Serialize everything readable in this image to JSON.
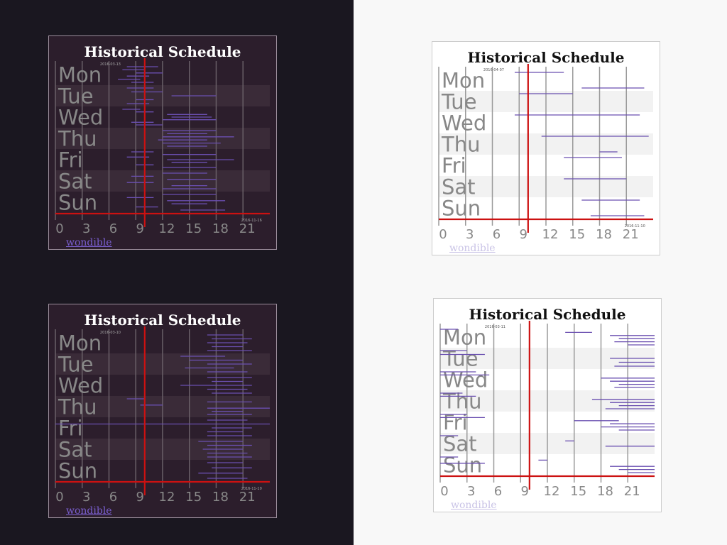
{
  "link_label": "wondible",
  "chart_data": [
    {
      "type": "timeline",
      "theme": "dark",
      "title": "Historical Schedule",
      "start_date": "2016-03-13",
      "end_date": "2016-11-16",
      "y_categories": [
        "Mon",
        "Tue",
        "Wed",
        "Thu",
        "Fri",
        "Sat",
        "Sun"
      ],
      "x_ticks": [
        0,
        3,
        6,
        9,
        12,
        15,
        18,
        21
      ],
      "xlim": [
        0,
        24
      ],
      "current_hour": 10,
      "segment_color": "#6a4fb0",
      "day_segments": [
        [
          [
            8,
            11.5
          ],
          [
            7.5,
            10
          ],
          [
            9,
            12
          ],
          [
            8,
            10.5
          ],
          [
            7,
            9.5
          ],
          [
            8.5,
            11
          ]
        ],
        [
          [
            8,
            11
          ],
          [
            8.5,
            12
          ],
          [
            13,
            18
          ],
          [
            9,
            11
          ],
          [
            8,
            10.5
          ]
        ],
        [
          [
            7.5,
            9.5
          ],
          [
            9,
            11
          ],
          [
            12.5,
            17
          ],
          [
            13,
            17.5
          ],
          [
            12,
            18
          ],
          [
            8.5,
            11
          ],
          [
            9,
            12
          ]
        ],
        [
          [
            12,
            18
          ],
          [
            12.5,
            17
          ],
          [
            12,
            20
          ],
          [
            11.5,
            17
          ],
          [
            12,
            18.5
          ],
          [
            12.5,
            17
          ]
        ],
        [
          [
            8.5,
            11
          ],
          [
            12,
            18
          ],
          [
            8,
            10.5
          ],
          [
            12.5,
            20
          ],
          [
            13,
            17
          ],
          [
            9,
            11
          ],
          [
            12,
            18
          ]
        ],
        [
          [
            12,
            17
          ],
          [
            8.5,
            11
          ],
          [
            12.5,
            18
          ],
          [
            8,
            11
          ],
          [
            13,
            17
          ],
          [
            12,
            18
          ]
        ],
        [
          [
            12,
            18
          ],
          [
            8,
            11
          ],
          [
            12.5,
            19
          ],
          [
            13,
            17
          ],
          [
            9,
            11.5
          ],
          [
            14,
            19
          ]
        ]
      ]
    },
    {
      "type": "timeline",
      "theme": "light",
      "title": "Historical Schedule",
      "start_date": "2016-04-07",
      "end_date": "2016-11-10",
      "y_categories": [
        "Mon",
        "Tue",
        "Wed",
        "Thu",
        "Fri",
        "Sat",
        "Sun"
      ],
      "x_ticks": [
        0,
        3,
        6,
        9,
        12,
        15,
        18,
        21
      ],
      "xlim": [
        0,
        24
      ],
      "current_hour": 10,
      "segment_color": "#6a4fb0",
      "day_segments": [
        [
          [
            8.5,
            14
          ],
          [
            16,
            23
          ]
        ],
        [
          [
            9,
            15
          ]
        ],
        [
          [
            8.5,
            22.5
          ]
        ],
        [
          [
            11.5,
            23.5
          ],
          [
            18,
            20
          ]
        ],
        [
          [
            14,
            20.5
          ]
        ],
        [
          [
            14,
            21
          ]
        ],
        [
          [
            16,
            22.5
          ],
          [
            17,
            23
          ]
        ]
      ]
    },
    {
      "type": "timeline",
      "theme": "dark",
      "title": "Historical Schedule",
      "start_date": "2016-03-10",
      "end_date": "2016-11-10",
      "y_categories": [
        "Mon",
        "Tue",
        "Wed",
        "Thu",
        "Fri",
        "Sat",
        "Sun"
      ],
      "x_ticks": [
        0,
        3,
        6,
        9,
        12,
        15,
        18,
        21
      ],
      "xlim": [
        0,
        24
      ],
      "current_hour": 10,
      "segment_color": "#6a4fb0",
      "day_segments": [
        [
          [
            17,
            21
          ],
          [
            17.5,
            22
          ],
          [
            17,
            21.5
          ],
          [
            17.5,
            21
          ],
          [
            17,
            22
          ]
        ],
        [
          [
            14,
            19
          ],
          [
            15,
            21
          ],
          [
            17,
            22
          ],
          [
            14.5,
            20
          ],
          [
            17,
            21.5
          ]
        ],
        [
          [
            17,
            22
          ],
          [
            17.5,
            21
          ],
          [
            14,
            22
          ],
          [
            17,
            21.5
          ],
          [
            17.5,
            22
          ]
        ],
        [
          [
            8,
            10
          ],
          [
            17,
            22
          ],
          [
            9.5,
            12
          ],
          [
            17,
            24
          ],
          [
            17.5,
            21
          ],
          [
            17,
            22
          ]
        ],
        [
          [
            17,
            21.5
          ],
          [
            0,
            24
          ],
          [
            17.5,
            22
          ],
          [
            17,
            21
          ],
          [
            17,
            22
          ]
        ],
        [
          [
            16,
            21
          ],
          [
            17,
            22
          ],
          [
            16.5,
            21
          ],
          [
            17,
            21.5
          ],
          [
            17,
            22
          ]
        ],
        [
          [
            17,
            21
          ],
          [
            17.5,
            22
          ],
          [
            16,
            21
          ],
          [
            17,
            21.5
          ]
        ]
      ]
    },
    {
      "type": "timeline",
      "theme": "light",
      "title": "Historical Schedule",
      "start_date": "2016-03-11",
      "end_date": "",
      "y_categories": [
        "Mon",
        "Tue",
        "Wed",
        "Thu",
        "Fri",
        "Sat",
        "Sun"
      ],
      "x_ticks": [
        0,
        3,
        6,
        9,
        12,
        15,
        18,
        21
      ],
      "xlim": [
        0,
        24
      ],
      "current_hour": 10,
      "segment_color": "#6a4fb0",
      "day_segments": [
        [
          [
            0,
            2
          ],
          [
            14,
            17
          ],
          [
            19,
            24
          ],
          [
            20,
            24
          ],
          [
            19.5,
            24
          ],
          [
            21,
            24
          ]
        ],
        [
          [
            0,
            3
          ],
          [
            0,
            5
          ],
          [
            19,
            24
          ],
          [
            20,
            24
          ],
          [
            19.5,
            24
          ]
        ],
        [
          [
            0,
            4
          ],
          [
            0,
            5.5
          ],
          [
            18,
            24
          ],
          [
            19,
            24
          ],
          [
            20,
            24
          ],
          [
            19.5,
            24
          ]
        ],
        [
          [
            0,
            2.5
          ],
          [
            0,
            4
          ],
          [
            17,
            24
          ],
          [
            19,
            24
          ],
          [
            20,
            24
          ],
          [
            18.5,
            24
          ]
        ],
        [
          [
            0,
            3
          ],
          [
            0,
            5
          ],
          [
            15,
            20
          ],
          [
            19,
            24
          ],
          [
            18,
            24
          ],
          [
            20,
            24
          ]
        ],
        [
          [
            0,
            2
          ],
          [
            14,
            15
          ],
          [
            18.5,
            24
          ],
          [
            24,
            24
          ]
        ],
        [
          [
            0,
            2
          ],
          [
            11,
            12
          ],
          [
            0,
            5
          ],
          [
            19,
            24
          ],
          [
            20,
            24
          ],
          [
            21,
            24
          ]
        ]
      ]
    }
  ]
}
